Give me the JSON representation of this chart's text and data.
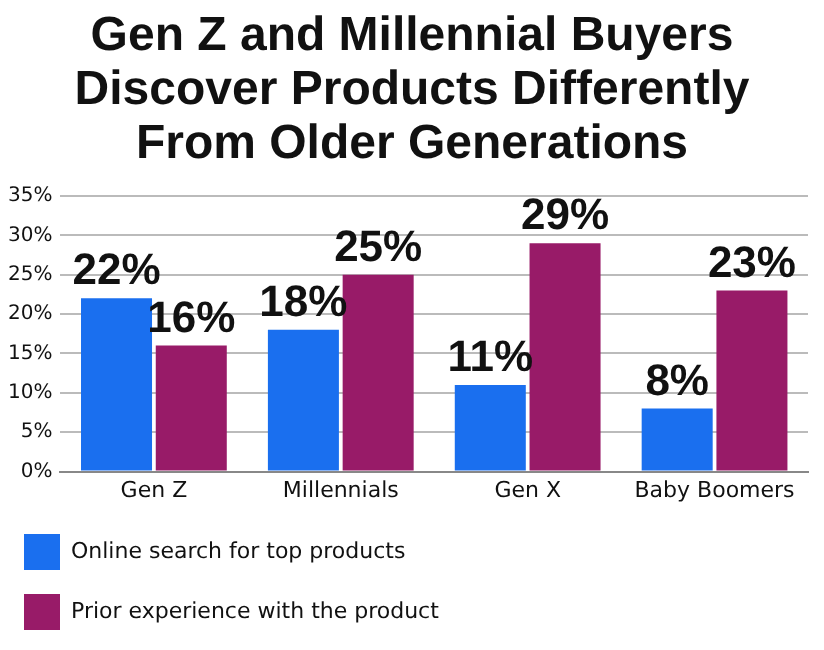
{
  "chart_data": {
    "type": "bar",
    "title": "Gen Z and Millennial Buyers Discover Products Differently From Older Generations",
    "categories": [
      "Gen Z",
      "Millennials",
      "Gen X",
      "Baby Boomers"
    ],
    "series": [
      {
        "name": "Online search for top products",
        "color": "#1a6fef",
        "values": [
          22,
          18,
          11,
          8
        ],
        "value_labels": [
          "22%",
          "18%",
          "11%",
          "8%"
        ]
      },
      {
        "name": "Prior experience with the product",
        "color": "#981b68",
        "values": [
          16,
          25,
          29,
          23
        ],
        "value_labels": [
          "16%",
          "25%",
          "29%",
          "23%"
        ]
      }
    ],
    "ylim": [
      0,
      35
    ],
    "yticks": [
      {
        "value": 0,
        "label": "0%"
      },
      {
        "value": 5,
        "label": "5%"
      },
      {
        "value": 10,
        "label": "10%"
      },
      {
        "value": 15,
        "label": "15%"
      },
      {
        "value": 20,
        "label": "20%"
      },
      {
        "value": 25,
        "label": "25%"
      },
      {
        "value": 30,
        "label": "30%"
      },
      {
        "value": 35,
        "label": "35%"
      }
    ],
    "grid": "y",
    "legend": "bottom"
  }
}
